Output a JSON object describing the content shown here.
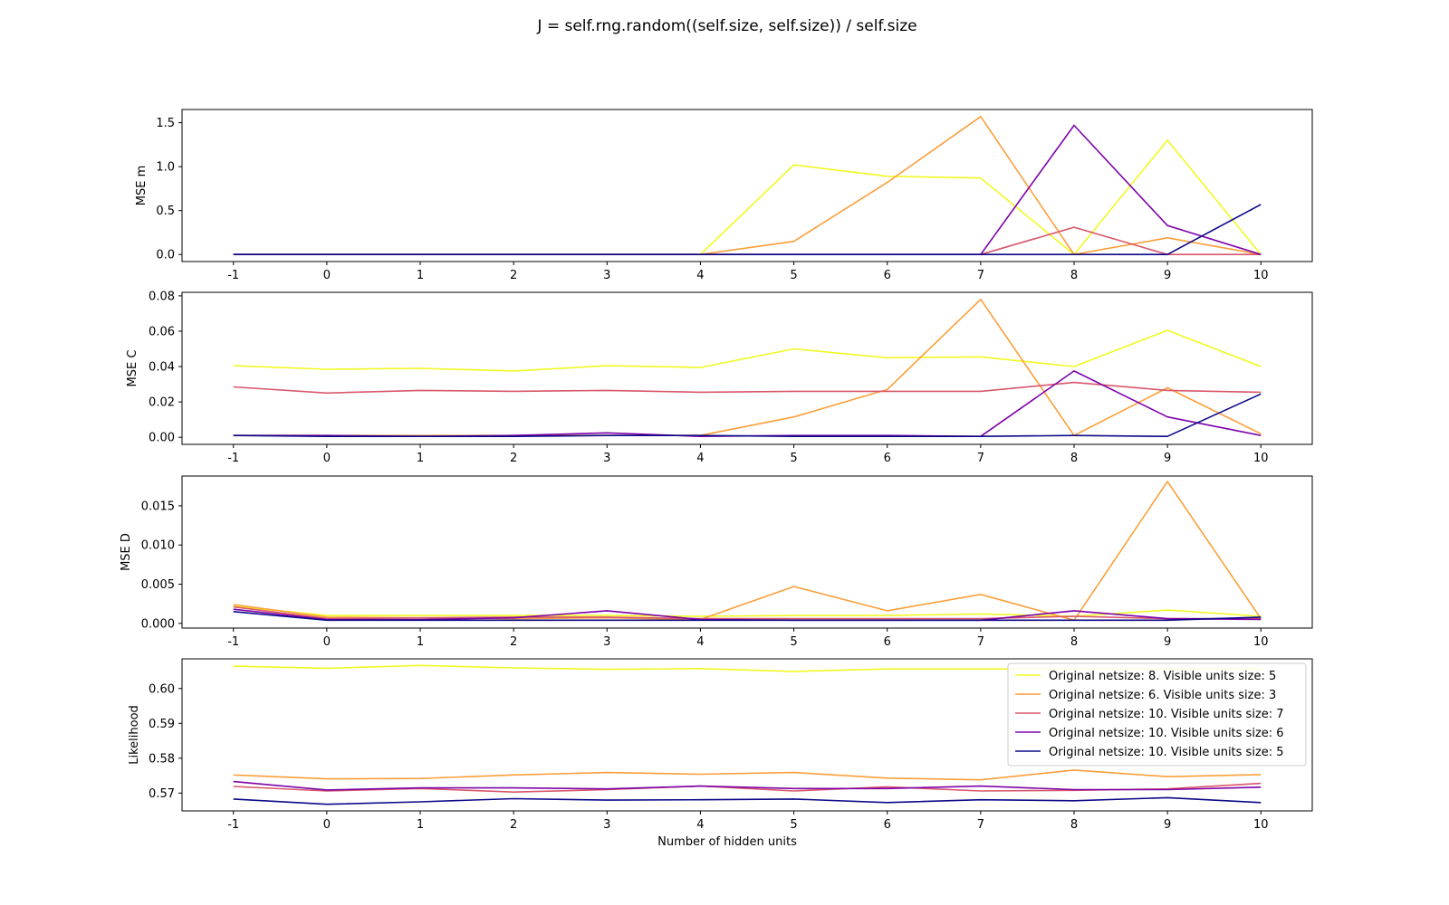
{
  "figure": {
    "title": "J = self.rng.random((self.size, self.size)) / self.size",
    "xlabel": "Number of hidden units"
  },
  "chart_data": [
    {
      "type": "line",
      "ylabel": "MSE m",
      "x": [
        -1,
        0,
        1,
        2,
        3,
        4,
        5,
        6,
        7,
        8,
        9,
        10
      ],
      "ylim": [
        -0.08,
        1.65
      ],
      "yticks": [
        0.0,
        0.5,
        1.0,
        1.5
      ],
      "ytick_labels": [
        "0.0",
        "0.5",
        "1.0",
        "1.5"
      ],
      "series": [
        {
          "name": "Original netsize: 8. Visible units size: 5",
          "color": "#f0f921",
          "values": [
            0,
            0,
            0,
            0,
            0,
            0,
            1.02,
            0.89,
            0.87,
            0.0,
            1.3,
            0.0
          ]
        },
        {
          "name": "Original netsize: 6. Visible units size: 3",
          "color": "#fb9f3a",
          "values": [
            0,
            0,
            0,
            0,
            0,
            0,
            0.15,
            0.82,
            1.57,
            0.0,
            0.19,
            0.0
          ]
        },
        {
          "name": "Original netsize: 10. Visible units size: 7",
          "color": "#d8576b",
          "values": [
            0,
            0,
            0,
            0,
            0,
            0,
            0,
            0,
            0,
            0.31,
            0.0,
            0.0
          ]
        },
        {
          "name": "Original netsize: 10. Visible units size: 6",
          "color": "#7e03a8",
          "values": [
            0,
            0,
            0,
            0,
            0,
            0,
            0,
            0,
            0,
            1.47,
            0.33,
            0.0
          ]
        },
        {
          "name": "Original netsize: 10. Visible units size: 5",
          "color": "#0d0887",
          "values": [
            0,
            0,
            0,
            0,
            0,
            0,
            0,
            0,
            0,
            0,
            0,
            0.57
          ]
        }
      ]
    },
    {
      "type": "line",
      "ylabel": "MSE C",
      "x": [
        -1,
        0,
        1,
        2,
        3,
        4,
        5,
        6,
        7,
        8,
        9,
        10
      ],
      "ylim": [
        -0.004,
        0.082
      ],
      "yticks": [
        0.0,
        0.02,
        0.04,
        0.06,
        0.08
      ],
      "ytick_labels": [
        "0.00",
        "0.02",
        "0.04",
        "0.06",
        "0.08"
      ],
      "series": [
        {
          "name": "Original netsize: 8. Visible units size: 5",
          "color": "#f0f921",
          "values": [
            0.0405,
            0.0385,
            0.039,
            0.0375,
            0.0405,
            0.0395,
            0.05,
            0.045,
            0.0455,
            0.04,
            0.0605,
            0.04
          ]
        },
        {
          "name": "Original netsize: 6. Visible units size: 3",
          "color": "#fb9f3a",
          "values": [
            0.001,
            0.001,
            0.001,
            0.001,
            0.001,
            0.001,
            0.0115,
            0.027,
            0.078,
            0.001,
            0.028,
            0.002
          ]
        },
        {
          "name": "Original netsize: 10. Visible units size: 7",
          "color": "#d8576b",
          "values": [
            0.0285,
            0.025,
            0.0265,
            0.026,
            0.0265,
            0.0255,
            0.026,
            0.026,
            0.026,
            0.031,
            0.0265,
            0.0255
          ]
        },
        {
          "name": "Original netsize: 10. Visible units size: 6",
          "color": "#7e03a8",
          "values": [
            0.001,
            0.001,
            0.0005,
            0.001,
            0.0025,
            0.0005,
            0.001,
            0.001,
            0.0005,
            0.0375,
            0.0115,
            0.001
          ]
        },
        {
          "name": "Original netsize: 10. Visible units size: 5",
          "color": "#0d0887",
          "values": [
            0.001,
            0.0005,
            0.0005,
            0.0005,
            0.001,
            0.001,
            0.0005,
            0.0005,
            0.0005,
            0.001,
            0.0005,
            0.0245
          ]
        }
      ]
    },
    {
      "type": "line",
      "ylabel": "MSE D",
      "x": [
        -1,
        0,
        1,
        2,
        3,
        4,
        5,
        6,
        7,
        8,
        9,
        10
      ],
      "ylim": [
        -0.0006,
        0.0188
      ],
      "yticks": [
        0.0,
        0.005,
        0.01,
        0.015
      ],
      "ytick_labels": [
        "0.000",
        "0.005",
        "0.010",
        "0.015"
      ],
      "series": [
        {
          "name": "Original netsize: 8. Visible units size: 5",
          "color": "#f0f921",
          "values": [
            0.0022,
            0.001,
            0.001,
            0.001,
            0.001,
            0.0009,
            0.001,
            0.001,
            0.0012,
            0.0009,
            0.0017,
            0.0009
          ]
        },
        {
          "name": "Original netsize: 6. Visible units size: 3",
          "color": "#fb9f3a",
          "values": [
            0.0024,
            0.0008,
            0.0007,
            0.0006,
            0.0007,
            0.0005,
            0.0047,
            0.0016,
            0.0037,
            0.0004,
            0.0181,
            0.0006
          ]
        },
        {
          "name": "Original netsize: 10. Visible units size: 7",
          "color": "#d8576b",
          "values": [
            0.0021,
            0.0006,
            0.0007,
            0.0008,
            0.0008,
            0.0006,
            0.0006,
            0.0006,
            0.0006,
            0.0009,
            0.0006,
            0.0006
          ]
        },
        {
          "name": "Original netsize: 10. Visible units size: 6",
          "color": "#7e03a8",
          "values": [
            0.0018,
            0.0005,
            0.0005,
            0.0007,
            0.0016,
            0.0005,
            0.0004,
            0.0004,
            0.0004,
            0.0016,
            0.0006,
            0.0005
          ]
        },
        {
          "name": "Original netsize: 10. Visible units size: 5",
          "color": "#0d0887",
          "values": [
            0.0015,
            0.0004,
            0.0004,
            0.0004,
            0.0004,
            0.0004,
            0.0004,
            0.0004,
            0.0004,
            0.0004,
            0.0004,
            0.0008
          ]
        }
      ]
    },
    {
      "type": "line",
      "ylabel": "Likelihood",
      "x": [
        -1,
        0,
        1,
        2,
        3,
        4,
        5,
        6,
        7,
        8,
        9,
        10
      ],
      "ylim": [
        0.5649,
        0.6085
      ],
      "yticks": [
        0.57,
        0.58,
        0.59,
        0.6
      ],
      "ytick_labels": [
        "0.57",
        "0.58",
        "0.59",
        "0.60"
      ],
      "legend": "top-right",
      "series": [
        {
          "name": "Original netsize: 8. Visible units size: 5",
          "color": "#f0f921",
          "values": [
            0.6064,
            0.6058,
            0.6066,
            0.6059,
            0.6055,
            0.6057,
            0.6049,
            0.6056,
            0.6056,
            0.6056,
            0.6056,
            0.6056
          ]
        },
        {
          "name": "Original netsize: 6. Visible units size: 3",
          "color": "#fb9f3a",
          "values": [
            0.5752,
            0.5741,
            0.5742,
            0.5752,
            0.5759,
            0.5754,
            0.5759,
            0.5743,
            0.5738,
            0.5766,
            0.5747,
            0.5753
          ]
        },
        {
          "name": "Original netsize: 10. Visible units size: 7",
          "color": "#d8576b",
          "values": [
            0.5719,
            0.5706,
            0.5713,
            0.5703,
            0.571,
            0.572,
            0.5706,
            0.5718,
            0.5706,
            0.5708,
            0.5712,
            0.5728
          ]
        },
        {
          "name": "Original netsize: 10. Visible units size: 6",
          "color": "#7e03a8",
          "values": [
            0.5733,
            0.5709,
            0.5715,
            0.5715,
            0.5712,
            0.572,
            0.5713,
            0.5713,
            0.572,
            0.571,
            0.571,
            0.5717
          ]
        },
        {
          "name": "Original netsize: 10. Visible units size: 5",
          "color": "#0d0887",
          "values": [
            0.5683,
            0.5668,
            0.5675,
            0.5684,
            0.568,
            0.5681,
            0.5683,
            0.5673,
            0.5681,
            0.5678,
            0.5687,
            0.5673
          ]
        }
      ]
    }
  ]
}
